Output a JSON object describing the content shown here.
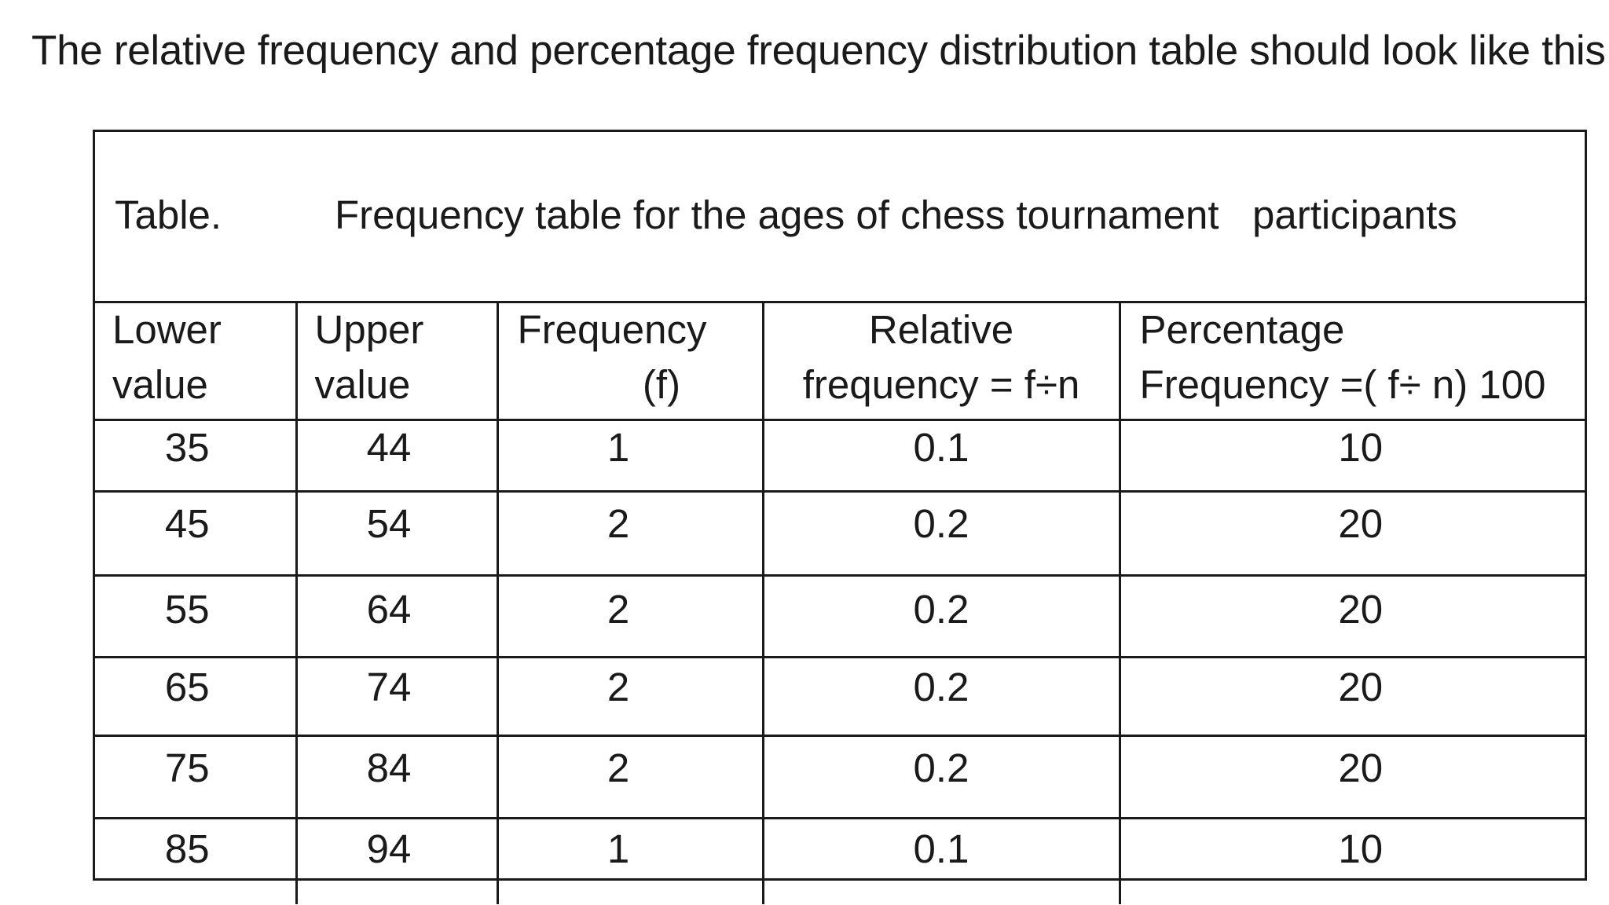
{
  "intro_text": "The relative  frequency and percentage frequency distribution table should look like this:",
  "table": {
    "caption_label": "Table.",
    "caption_text": "Frequency table for the ages of chess tournament   participants",
    "headers": [
      [
        "Lower",
        "value"
      ],
      [
        "Upper",
        "value"
      ],
      [
        "Frequency",
        "(f)"
      ],
      [
        "Relative",
        "frequency = f÷n"
      ],
      [
        "Percentage",
        "Frequency =( f÷ n) 100"
      ]
    ],
    "rows": [
      [
        "35",
        "44",
        "1",
        "0.1",
        "10"
      ],
      [
        "45",
        "54",
        "2",
        "0.2",
        "20"
      ],
      [
        "55",
        "64",
        "2",
        "0.2",
        "20"
      ],
      [
        "65",
        "74",
        "2",
        "0.2",
        "20"
      ],
      [
        "75",
        "84",
        "2",
        "0.2",
        "20"
      ],
      [
        "85",
        "94",
        "1",
        "0.1",
        "10"
      ]
    ]
  }
}
